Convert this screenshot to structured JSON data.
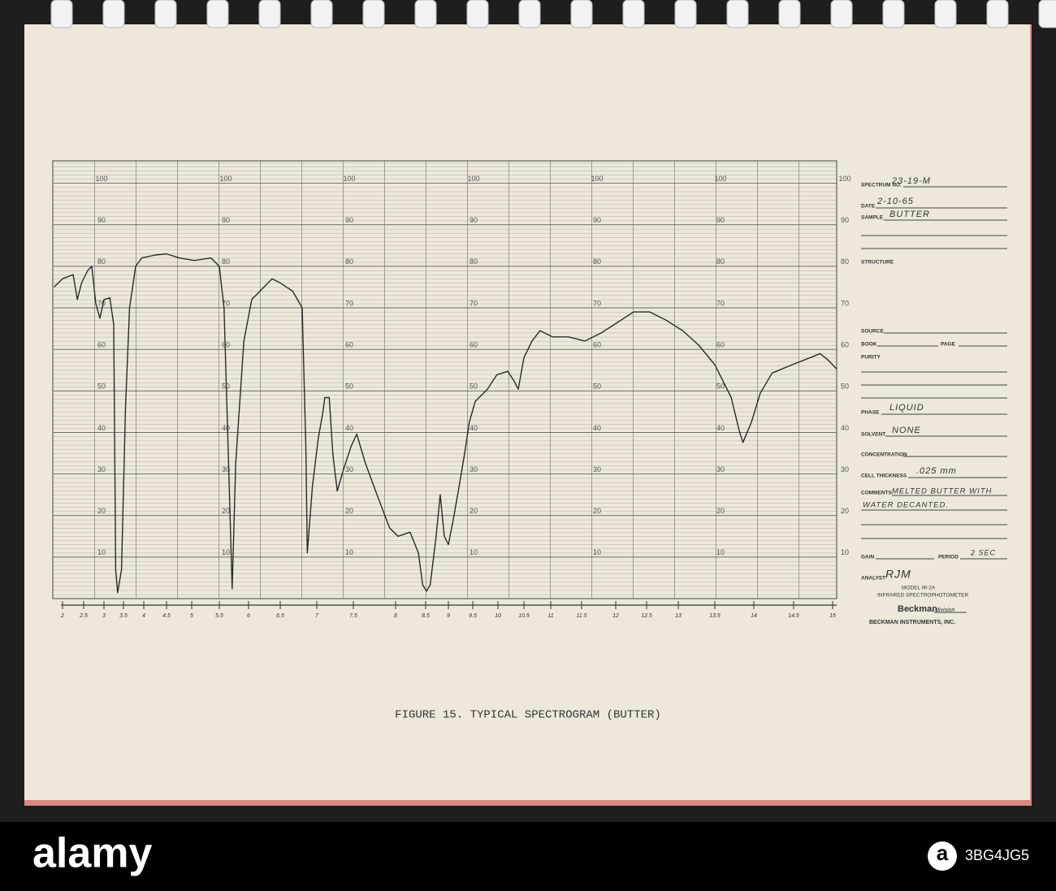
{
  "chart_data": {
    "type": "line",
    "title": "FIGURE 15.   TYPICAL SPECTROGRAM (BUTTER)",
    "x": [
      1.8,
      2.0,
      2.25,
      2.35,
      2.45,
      2.6,
      2.7,
      2.8,
      2.9,
      3.0,
      3.15,
      3.25,
      3.3,
      3.35,
      3.45,
      3.55,
      3.65,
      3.8,
      3.95,
      4.25,
      4.5,
      4.75,
      5.05,
      5.35,
      5.5,
      5.58,
      5.67,
      5.72,
      5.78,
      5.92,
      6.05,
      6.18,
      6.37,
      6.5,
      6.67,
      6.8,
      6.85,
      6.87,
      6.94,
      7.02,
      7.08,
      7.11,
      7.17,
      7.22,
      7.28,
      7.36,
      7.47,
      7.54,
      7.64,
      7.78,
      7.93,
      8.04,
      8.24,
      8.38,
      8.45,
      8.52,
      8.6,
      8.73,
      8.82,
      8.91,
      9.0,
      9.1,
      9.22,
      9.33,
      9.43,
      9.55,
      9.79,
      9.98,
      10.19,
      10.31,
      10.39,
      10.5,
      10.65,
      10.8,
      11.03,
      11.29,
      11.55,
      11.79,
      12.03,
      12.29,
      12.55,
      12.81,
      13.06,
      13.28,
      13.5,
      13.71,
      13.81,
      13.86,
      13.97,
      14.08,
      14.23,
      14.48,
      14.74,
      14.84,
      14.95,
      15.05
    ],
    "values": [
      75,
      77,
      78,
      72,
      76,
      79,
      80,
      71,
      67.5,
      72,
      72.4,
      66,
      7,
      1.4,
      7,
      46,
      70,
      80,
      82,
      82.7,
      83,
      82,
      81.4,
      82,
      80,
      70,
      27,
      2.4,
      32.7,
      62,
      72,
      74,
      77,
      76,
      74,
      70,
      36.7,
      11,
      27,
      38.6,
      44.5,
      48.4,
      48.4,
      34.7,
      25.9,
      30.8,
      36.7,
      39.6,
      32.7,
      25,
      17,
      15,
      16,
      11,
      3.3,
      1.8,
      3.3,
      15,
      25,
      15,
      13,
      19,
      27,
      34.7,
      42.5,
      47.5,
      50.4,
      53.9,
      54.7,
      52.4,
      50.4,
      58,
      62,
      64.5,
      63,
      63,
      62,
      64,
      66.5,
      69,
      69,
      67,
      64.5,
      61,
      56.3,
      48.4,
      40.6,
      37.6,
      42.5,
      49.4,
      54.3,
      56.3,
      58.2,
      59,
      57.3,
      55.3
    ],
    "color": "#2a2a2a",
    "xlim": [
      1.8,
      15.05
    ],
    "xticks": [
      2,
      2.5,
      3,
      3.5,
      4,
      4.5,
      5,
      5.5,
      6,
      6.5,
      7,
      7.5,
      8,
      8.5,
      9,
      9.5,
      10,
      10.5,
      11,
      11.5,
      12,
      12.5,
      13,
      13.5,
      14,
      14.5,
      15
    ],
    "ylim": [
      0,
      105
    ],
    "yticks": [
      10,
      20,
      30,
      40,
      50,
      60,
      70,
      80,
      90,
      100
    ],
    "grid": true
  },
  "form": {
    "spectrum_label": "SPECTRUM NO.",
    "spectrum": "23-19-M",
    "date_label": "DATE",
    "date": "2-10-65",
    "sample_label": "SAMPLE",
    "sample": "BUTTER",
    "structure_label": "STRUCTURE",
    "source_label": "SOURCE",
    "book_label": "BOOK",
    "page_label": "PAGE",
    "purity_label": "PURITY",
    "phase_label": "PHASE",
    "phase": "LIQUID",
    "solvent_label": "SOLVENT",
    "solvent": "NONE",
    "concentration_label": "CONCENTRATION",
    "cell_label": "CELL THICKNESS",
    "cell": ".025 mm",
    "comments_label": "COMMENTS",
    "comments": [
      "MELTED BUTTER WITH",
      "WATER DECANTED."
    ],
    "gain_label": "GAIN",
    "period_label": "PERIOD",
    "period": "2 SEC",
    "analyst_label": "ANALYST",
    "analyst": "RJM",
    "model": "MODEL IR-2A",
    "instrument": "INFRARED SPECTROPHOTOMETER",
    "brand": "Beckman",
    "division": "division",
    "company": "BECKMAN INSTRUMENTS, INC."
  },
  "footer": {
    "logo": "a",
    "brand": "alamy",
    "image_id": "3BG4JG5"
  }
}
